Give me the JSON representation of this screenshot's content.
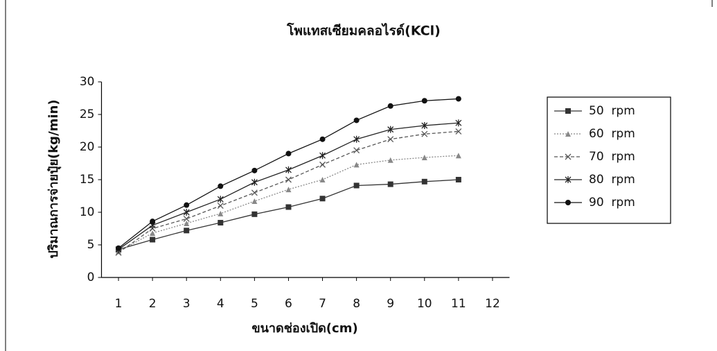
{
  "chart_data": {
    "type": "line",
    "title": "โพแทสเซียมคลอไรด์(KCl)",
    "x_label": "ขนาดช่องเปิด(cm)",
    "y_label": "ปริมาณการจ่ายปุ๋ย(kg/min)",
    "x": [
      1,
      2,
      3,
      4,
      5,
      6,
      7,
      8,
      9,
      10,
      11
    ],
    "xlim": [
      0.5,
      12.5
    ],
    "xticks": [
      1,
      2,
      3,
      4,
      5,
      6,
      7,
      8,
      9,
      10,
      11,
      12
    ],
    "ylim": [
      0,
      30
    ],
    "yticks": [
      0,
      5,
      10,
      15,
      20,
      25,
      30
    ],
    "grid": false,
    "legend": "right",
    "series": [
      {
        "name": "50  rpm",
        "color": "#333333",
        "marker": "square",
        "dash": "solid",
        "values": [
          4.3,
          5.8,
          7.2,
          8.4,
          9.7,
          10.8,
          12.1,
          14.1,
          14.3,
          14.7,
          15.0
        ]
      },
      {
        "name": "60  rpm",
        "color": "#888888",
        "marker": "triangle",
        "dash": "dotted",
        "values": [
          4.0,
          6.8,
          8.3,
          9.8,
          11.7,
          13.5,
          15.0,
          17.3,
          18.0,
          18.4,
          18.7
        ]
      },
      {
        "name": "70  rpm",
        "color": "#555555",
        "marker": "cross",
        "dash": "dashed",
        "values": [
          3.8,
          7.5,
          9.0,
          11.0,
          13.0,
          15.0,
          17.3,
          19.5,
          21.2,
          22.0,
          22.4
        ]
      },
      {
        "name": "80  rpm",
        "color": "#222222",
        "marker": "star",
        "dash": "solid",
        "values": [
          4.3,
          8.0,
          10.0,
          12.0,
          14.6,
          16.5,
          18.7,
          21.2,
          22.7,
          23.3,
          23.7
        ]
      },
      {
        "name": "90  rpm",
        "color": "#111111",
        "marker": "circle",
        "dash": "solid",
        "values": [
          4.5,
          8.6,
          11.1,
          14.0,
          16.4,
          19.0,
          21.2,
          24.1,
          26.3,
          27.1,
          27.4
        ]
      }
    ]
  }
}
